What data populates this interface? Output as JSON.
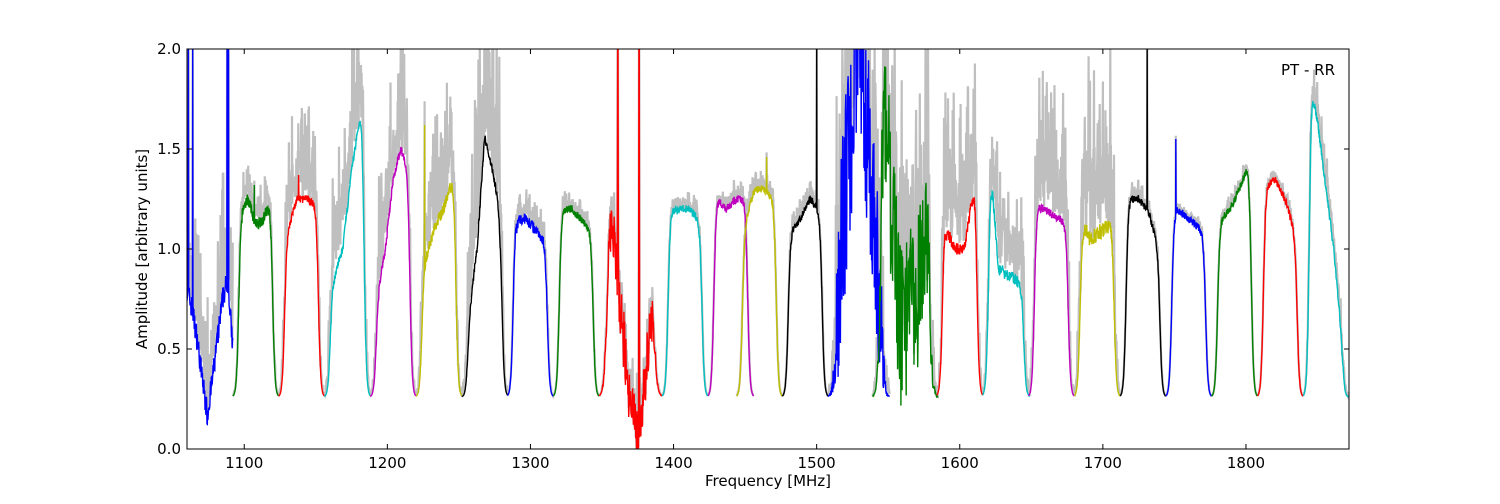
{
  "chart_data": {
    "type": "line",
    "title": "",
    "annotation": "PT - RR",
    "xlabel": "Frequency [MHz]",
    "ylabel": "Amplitude [arbitrary units]",
    "xlim": [
      1060,
      1872
    ],
    "ylim": [
      0.0,
      2.0
    ],
    "xticks": [
      1100,
      1200,
      1300,
      1400,
      1500,
      1600,
      1700,
      1800
    ],
    "xtick_labels": [
      "1100",
      "1200",
      "1300",
      "1400",
      "1500",
      "1600",
      "1700",
      "1800"
    ],
    "yticks": [
      0.0,
      0.5,
      1.0,
      1.5,
      2.0
    ],
    "ytick_labels": [
      "0.0",
      "0.5",
      "1.0",
      "1.5",
      "2.0"
    ],
    "grid": false,
    "background_series_color": "#bfbfbf",
    "colors": {
      "b": "#0000ff",
      "g": "#008000",
      "r": "#ff0000",
      "c": "#00bfbf",
      "m": "#bf00bf",
      "y": "#bfbf00",
      "k": "#000000"
    },
    "subbands": [
      {
        "range": [
          1060,
          1092
        ],
        "color": "b",
        "levels": [
          0.8,
          0.7,
          0.55,
          0.35,
          0.17,
          0.35,
          0.55,
          0.75,
          0.85,
          0.5
        ],
        "window": false,
        "noise": 0.06,
        "gray": 0.3,
        "spikes": [
          [
            1061,
            2.0
          ],
          [
            1064,
            2.0
          ],
          [
            1088,
            2.0
          ],
          [
            1089,
            2.0
          ]
        ]
      },
      {
        "range": [
          1092,
          1124
        ],
        "color": "g",
        "levels": [
          1.1,
          1.2,
          1.25,
          1.12,
          1.15,
          1.25,
          1.28
        ],
        "noise": 0.03,
        "gray": 0.1,
        "spikes": [
          [
            1107,
            1.32
          ]
        ]
      },
      {
        "range": [
          1124,
          1156
        ],
        "color": "r",
        "levels": [
          1.0,
          1.1,
          1.25,
          1.25,
          1.23,
          1.22
        ],
        "noise": 0.02,
        "gray": 0.25,
        "spikes": [
          [
            1138,
            1.37
          ]
        ]
      },
      {
        "range": [
          1156,
          1188
        ],
        "color": "c",
        "levels": [
          0.85,
          0.85,
          1.0,
          1.4,
          1.7,
          1.55
        ],
        "noise": 0.02,
        "gray": 0.35,
        "spikes": []
      },
      {
        "range": [
          1188,
          1220
        ],
        "color": "m",
        "levels": [
          0.75,
          0.8,
          1.0,
          1.35,
          1.5,
          1.4,
          1.2
        ],
        "noise": 0.02,
        "gray": 0.3,
        "spikes": []
      },
      {
        "range": [
          1220,
          1252
        ],
        "color": "y",
        "levels": [
          0.9,
          0.95,
          1.1,
          1.2,
          1.35,
          1.6
        ],
        "noise": 0.03,
        "gray": 0.3,
        "spikes": [
          [
            1226,
            1.62
          ]
        ]
      },
      {
        "range": [
          1252,
          1284
        ],
        "color": "k",
        "levels": [
          0.6,
          0.7,
          1.0,
          1.56,
          1.4,
          1.2,
          1.83
        ],
        "noise": 0.02,
        "gray": 0.5,
        "spikes": []
      },
      {
        "range": [
          1284,
          1316
        ],
        "color": "b",
        "levels": [
          1.6,
          1.15,
          1.15,
          1.1,
          1.05,
          1.0
        ],
        "noise": 0.03,
        "gray": 0.08,
        "spikes": []
      },
      {
        "range": [
          1316,
          1348
        ],
        "color": "g",
        "levels": [
          1.25,
          1.2,
          1.2,
          1.15,
          1.1,
          1.05
        ],
        "noise": 0.02,
        "gray": 0.05,
        "spikes": []
      },
      {
        "range": [
          1348,
          1392
        ],
        "color": "r",
        "levels": [
          1.3,
          1.3,
          1.0,
          0.6,
          0.2,
          0.05,
          0.4,
          0.9,
          1.2
        ],
        "noise": 0.15,
        "gray": 0.1,
        "spikes": [
          [
            1361,
            2.0
          ],
          [
            1376,
            2.0
          ]
        ]
      },
      {
        "range": [
          1392,
          1424
        ],
        "color": "c",
        "levels": [
          1.2,
          1.2,
          1.2,
          1.2,
          1.15,
          1.2
        ],
        "noise": 0.02,
        "gray": 0.05,
        "spikes": []
      },
      {
        "range": [
          1424,
          1456
        ],
        "color": "m",
        "levels": [
          1.3,
          1.25,
          1.2,
          1.25,
          1.25,
          1.2
        ],
        "noise": 0.02,
        "gray": 0.05,
        "spikes": [
          [
            1421,
            1.44
          ]
        ]
      },
      {
        "range": [
          1444,
          1476
        ],
        "color": "y",
        "levels": [
          1.2,
          1.15,
          1.3,
          1.3,
          1.25,
          1.1
        ],
        "noise": 0.02,
        "gray": 0.05,
        "spikes": [
          [
            1465,
            1.46
          ]
        ]
      },
      {
        "range": [
          1476,
          1508
        ],
        "color": "k",
        "levels": [
          1.1,
          1.1,
          1.15,
          1.25,
          1.2,
          1.15
        ],
        "noise": 0.02,
        "gray": 0.05,
        "spikes": [
          [
            1500,
            2.0
          ]
        ]
      },
      {
        "range": [
          1508,
          1551
        ],
        "color": "b",
        "levels": [
          0.8,
          0.85,
          1.5,
          2.0,
          1.5,
          0.9,
          0.8
        ],
        "noise": 0.5,
        "gray": 0.6,
        "spikes": []
      },
      {
        "range": [
          1539,
          1585
        ],
        "color": "g",
        "levels": [
          0.9,
          2.0,
          1.2,
          0.6,
          0.7,
          0.8,
          1.3,
          0.6
        ],
        "noise": 0.4,
        "gray": 0.5,
        "spikes": []
      },
      {
        "range": [
          1584,
          1616
        ],
        "color": "r",
        "levels": [
          1.8,
          1.1,
          1.0,
          1.0,
          1.3,
          1.9
        ],
        "noise": 0.03,
        "gray": 0.4,
        "spikes": []
      },
      {
        "range": [
          1616,
          1649
        ],
        "color": "c",
        "levels": [
          2.0,
          0.9,
          0.85,
          0.8
        ],
        "noise": 0.03,
        "gray": 0.3,
        "spikes": []
      },
      {
        "range": [
          1648,
          1680
        ],
        "color": "m",
        "levels": [
          1.25,
          1.2,
          1.15,
          1.1
        ],
        "noise": 0.02,
        "gray": 0.35,
        "spikes": []
      },
      {
        "range": [
          1680,
          1712
        ],
        "color": "y",
        "levels": [
          1.25,
          1.05,
          1.1,
          1.2
        ],
        "noise": 0.04,
        "gray": 0.5,
        "spikes": []
      },
      {
        "range": [
          1712,
          1744
        ],
        "color": "k",
        "levels": [
          1.2,
          1.25,
          1.25,
          1.2,
          1.05,
          1.0
        ],
        "noise": 0.02,
        "gray": 0.04,
        "spikes": [
          [
            1731,
            2.0
          ]
        ]
      },
      {
        "range": [
          1744,
          1776
        ],
        "color": "b",
        "levels": [
          1.2,
          1.2,
          1.15,
          1.1,
          1.05
        ],
        "noise": 0.02,
        "gray": 0.03,
        "spikes": [
          [
            1751,
            1.55
          ]
        ]
      },
      {
        "range": [
          1776,
          1808
        ],
        "color": "g",
        "levels": [
          1.1,
          1.15,
          1.2,
          1.3,
          1.42,
          1.2
        ],
        "noise": 0.02,
        "gray": 0.03,
        "spikes": []
      },
      {
        "range": [
          1808,
          1840
        ],
        "color": "r",
        "levels": [
          1.25,
          1.32,
          1.35,
          1.25,
          1.1,
          0.95
        ],
        "noise": 0.02,
        "gray": 0.03,
        "spikes": []
      },
      {
        "range": [
          1840,
          1872
        ],
        "color": "c",
        "levels": [
          1.5,
          1.85,
          1.6,
          1.3,
          1.0,
          0.6,
          0.4
        ],
        "noise": 0.02,
        "gray": 0.1,
        "spikes": []
      }
    ]
  }
}
